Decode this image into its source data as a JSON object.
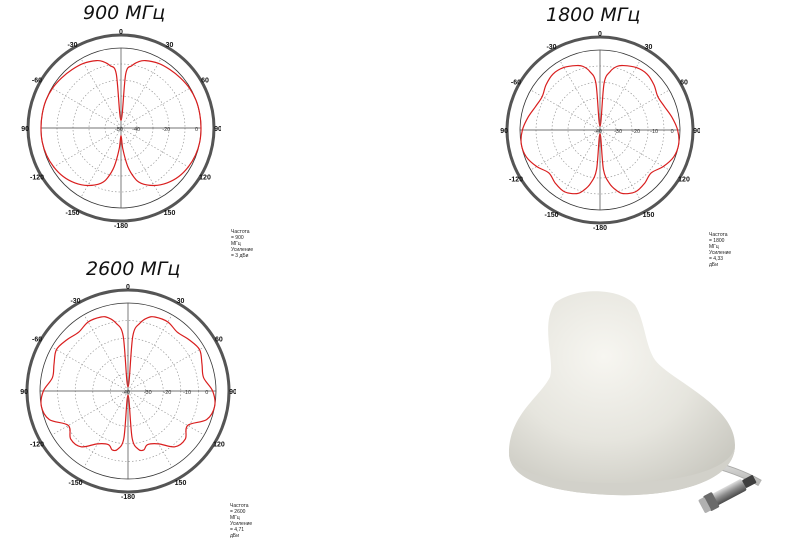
{
  "chart_data": [
    {
      "type": "polar",
      "title": "900 МГц",
      "angle_labels": [
        "0",
        "30",
        "60",
        "90",
        "120",
        "150",
        "-180",
        "-150",
        "-120",
        "-90",
        "-60",
        "-30"
      ],
      "radial_labels": [
        "-50",
        "-40",
        "-20",
        "0"
      ],
      "rlim": [
        -50,
        3
      ],
      "grid": true,
      "series": [
        {
          "angles": [
            0,
            5,
            10,
            15,
            20,
            30,
            40,
            50,
            60,
            70,
            80,
            90,
            100,
            110,
            120,
            130,
            140,
            150,
            160,
            165,
            170,
            175,
            180
          ],
          "values": [
            -45,
            -14,
            -8,
            -4.5,
            -2.5,
            -0.5,
            0.5,
            1.5,
            2.5,
            3,
            3,
            3,
            3,
            2.5,
            1.5,
            0,
            -2.5,
            -6,
            -11,
            -16,
            -24,
            -36,
            -45
          ]
        }
      ],
      "caption": [
        "Частота = 900 МГц",
        "Усиление = 3 дБи"
      ]
    },
    {
      "type": "polar",
      "title": "1800 МГц",
      "angle_labels": [
        "0",
        "30",
        "60",
        "90",
        "120",
        "150",
        "-180",
        "-150",
        "-120",
        "-90",
        "-60",
        "-30"
      ],
      "radial_labels": [
        "-40",
        "-30",
        "-20",
        "-10",
        "0"
      ],
      "rlim": [
        -40,
        4.33
      ],
      "grid": true,
      "series": [
        {
          "angles": [
            0,
            5,
            10,
            15,
            20,
            30,
            40,
            50,
            60,
            70,
            80,
            90,
            100,
            110,
            120,
            130,
            140,
            150,
            160,
            165,
            170,
            175,
            180
          ],
          "values": [
            -38,
            -14,
            -7,
            -3.5,
            -2,
            0,
            0.5,
            -1,
            -3,
            -2,
            0.5,
            3,
            4.3,
            3.5,
            0.5,
            -3,
            -1.5,
            -0.5,
            -2.5,
            -5.5,
            -10,
            -18,
            -38
          ]
        }
      ],
      "caption": [
        "Частота = 1800 МГц",
        "Усиление = 4,33 дБи"
      ]
    },
    {
      "type": "polar",
      "title": "2600 МГц",
      "angle_labels": [
        "0",
        "30",
        "60",
        "90",
        "120",
        "150",
        "-180",
        "-150",
        "-120",
        "-90",
        "-60",
        "-30"
      ],
      "radial_labels": [
        "-40",
        "-30",
        "-20",
        "-10",
        "0"
      ],
      "rlim": [
        -40,
        4.71
      ],
      "grid": true,
      "series": [
        {
          "angles": [
            0,
            5,
            10,
            15,
            20,
            30,
            40,
            50,
            60,
            70,
            80,
            90,
            100,
            110,
            120,
            130,
            140,
            150,
            160,
            165,
            170,
            175,
            180
          ],
          "values": [
            -38,
            -12,
            -5,
            -1.5,
            0,
            0.5,
            -1,
            0.5,
            2,
            0,
            -1,
            3,
            4.7,
            2.5,
            -5,
            -2,
            -3,
            -9,
            -11,
            -9,
            -10,
            -16,
            -38
          ]
        }
      ],
      "caption": [
        "Частота = 2600 МГц",
        "Усиление = 4,71 дБи"
      ]
    }
  ],
  "colors": {
    "pattern": "#d91e1e",
    "outer_ring": "#555555",
    "grid": "#8a8a8a"
  },
  "photo": {
    "subject": "ceiling-antenna-photo"
  }
}
